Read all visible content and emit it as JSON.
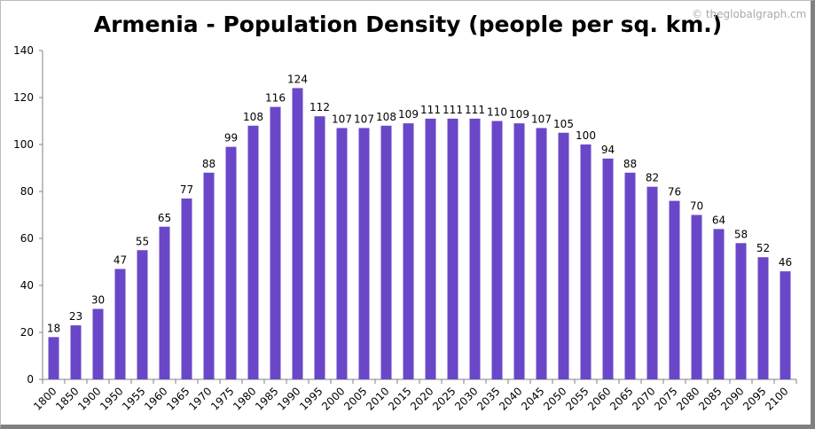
{
  "watermark": "© theglobalgraph.cm",
  "colors": {
    "bar": "#6a47c8",
    "axis": "#808080",
    "text": "#000000"
  },
  "chart_data": {
    "type": "bar",
    "title": "Armenia - Population Density (people per sq. km.)",
    "xlabel": "",
    "ylabel": "",
    "ylim": [
      0,
      140
    ],
    "yticks": [
      0,
      20,
      40,
      60,
      80,
      100,
      120,
      140
    ],
    "grid": false,
    "legend": "none",
    "categories": [
      "1800",
      "1850",
      "1900",
      "1950",
      "1955",
      "1960",
      "1965",
      "1970",
      "1975",
      "1980",
      "1985",
      "1990",
      "1995",
      "2000",
      "2005",
      "2010",
      "2015",
      "2020",
      "2025",
      "2030",
      "2035",
      "2040",
      "2045",
      "2050",
      "2055",
      "2060",
      "2065",
      "2070",
      "2075",
      "2080",
      "2085",
      "2090",
      "2095",
      "2100"
    ],
    "values": [
      18,
      23,
      30,
      47,
      55,
      65,
      77,
      88,
      99,
      108,
      116,
      124,
      112,
      107,
      107,
      108,
      109,
      111,
      111,
      111,
      110,
      109,
      107,
      105,
      100,
      94,
      88,
      82,
      76,
      70,
      64,
      58,
      52,
      46
    ]
  }
}
